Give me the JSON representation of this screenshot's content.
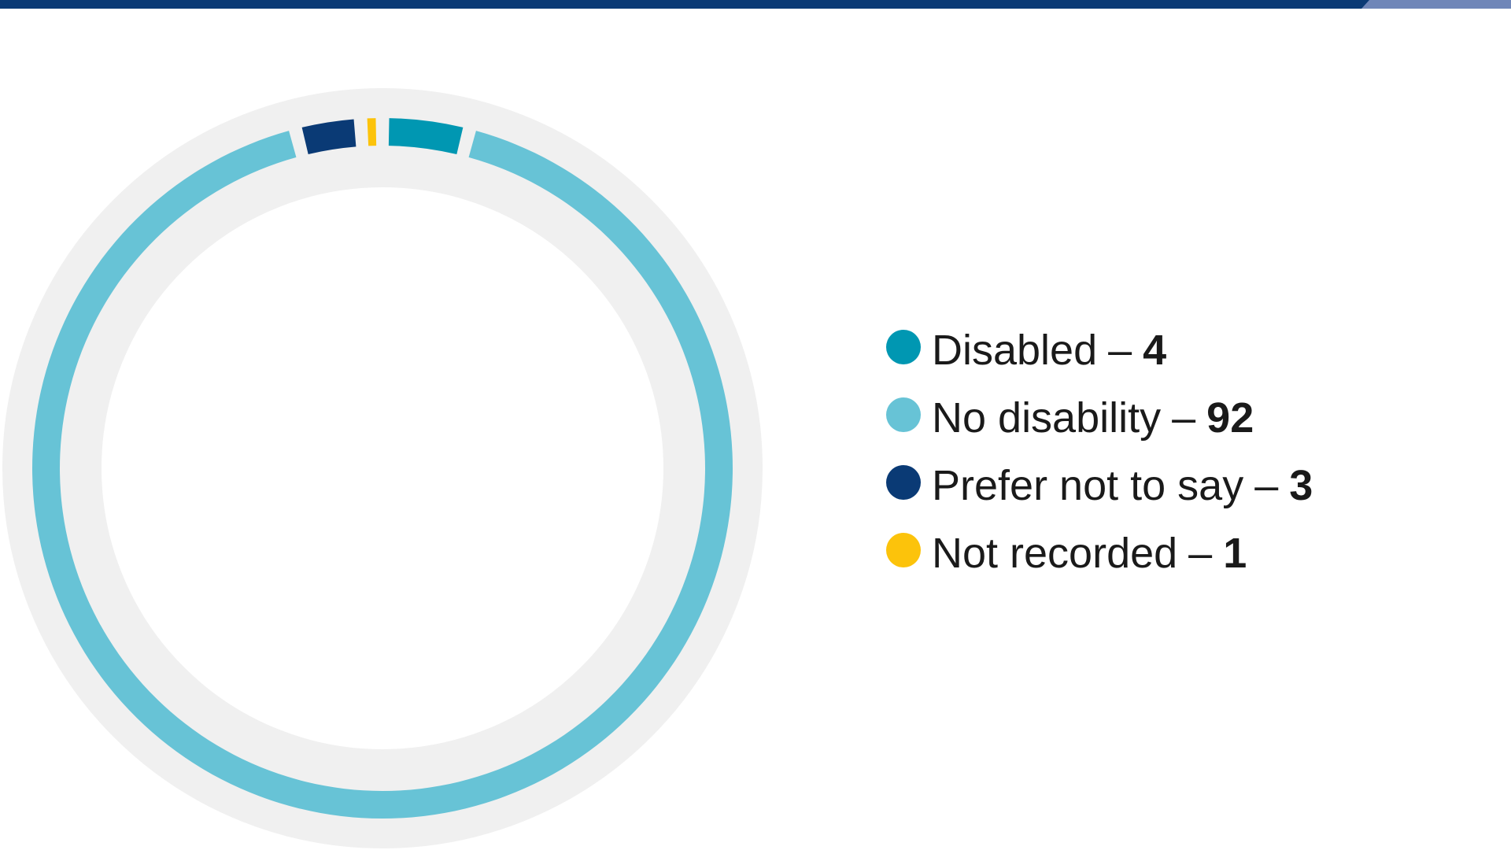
{
  "chart_data": {
    "type": "pie",
    "variant": "donut",
    "title": "",
    "categories": [
      "Disabled",
      "No disability",
      "Prefer not to say",
      "Not recorded"
    ],
    "values": [
      4,
      92,
      3,
      1
    ],
    "colors": [
      "#0097b2",
      "#67c3d6",
      "#0a3a75",
      "#fcc30b"
    ],
    "separator": "–",
    "track_color": "#f0f0f0",
    "legend_position": "right"
  },
  "header": {
    "bar_color": "#0a3a75",
    "accent_color": "#6f86b8"
  }
}
